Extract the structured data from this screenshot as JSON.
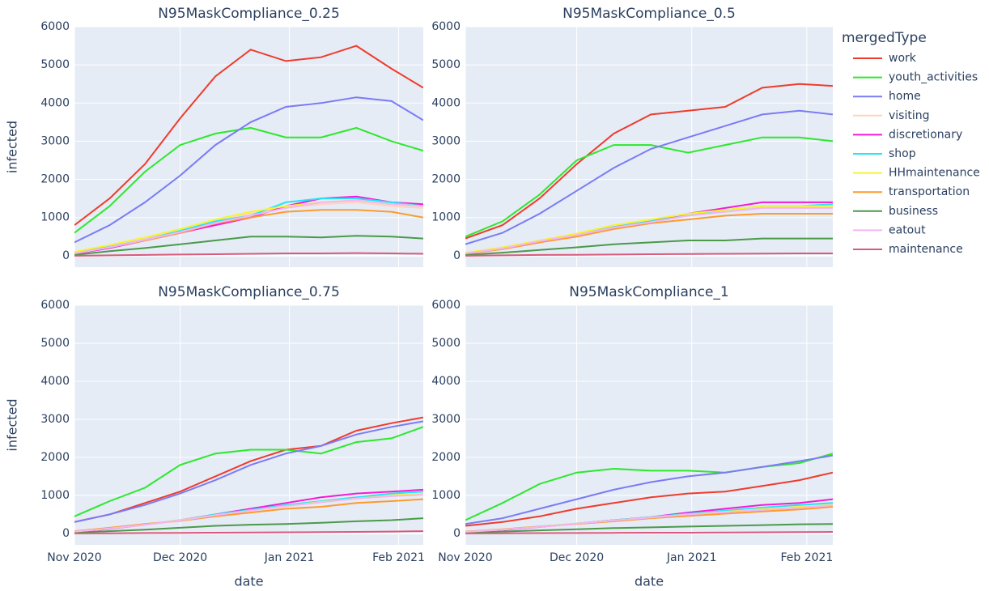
{
  "legend_title": "mergedType",
  "legend": "right",
  "chart_data": [
    {
      "type": "line",
      "title": "N95MaskCompliance_0.25",
      "y_label": "infected",
      "x": [
        0,
        10,
        20,
        30,
        40,
        50,
        60,
        70,
        80,
        90,
        99
      ],
      "xlim": [
        0,
        99
      ],
      "xticks": [
        0,
        30,
        61,
        92
      ],
      "ylim": [
        -300,
        6000
      ],
      "yticks": [
        0,
        1000,
        2000,
        3000,
        4000,
        5000,
        6000
      ],
      "grid": true,
      "series": [
        {
          "name": "work",
          "color": "#EF3B2C",
          "values": [
            800,
            1500,
            2400,
            3600,
            4700,
            5400,
            5100,
            5200,
            5500,
            4900,
            4400
          ]
        },
        {
          "name": "youth_activities",
          "color": "#2CE82C",
          "values": [
            600,
            1300,
            2200,
            2900,
            3200,
            3350,
            3100,
            3100,
            3350,
            3000,
            2750
          ]
        },
        {
          "name": "home",
          "color": "#7B7BF5",
          "values": [
            350,
            800,
            1400,
            2100,
            2900,
            3500,
            3900,
            4000,
            4150,
            4050,
            3550
          ]
        },
        {
          "name": "visiting",
          "color": "#FFD3BE",
          "values": [
            100,
            250,
            450,
            650,
            900,
            1100,
            1250,
            1350,
            1400,
            1300,
            1250
          ]
        },
        {
          "name": "discretionary",
          "color": "#F51AD6",
          "values": [
            50,
            200,
            400,
            600,
            800,
            1000,
            1300,
            1500,
            1550,
            1400,
            1350
          ]
        },
        {
          "name": "shop",
          "color": "#22E5F5",
          "values": [
            80,
            230,
            420,
            650,
            900,
            1050,
            1400,
            1500,
            1500,
            1400,
            1300
          ]
        },
        {
          "name": "HHmaintenance",
          "color": "#F5F52C",
          "values": [
            100,
            280,
            480,
            700,
            950,
            1150,
            1300,
            1400,
            1450,
            1350,
            1300
          ]
        },
        {
          "name": "transportation",
          "color": "#FF9A2C",
          "values": [
            60,
            220,
            400,
            600,
            850,
            1000,
            1150,
            1200,
            1200,
            1150,
            1000
          ]
        },
        {
          "name": "business",
          "color": "#4A9A4A",
          "values": [
            20,
            120,
            200,
            300,
            400,
            500,
            500,
            480,
            520,
            500,
            450
          ]
        },
        {
          "name": "eatout",
          "color": "#F5B5F5",
          "values": [
            60,
            220,
            420,
            620,
            860,
            1050,
            1250,
            1400,
            1450,
            1350,
            1300
          ]
        },
        {
          "name": "maintenance",
          "color": "#D95A7A",
          "values": [
            0,
            10,
            20,
            30,
            40,
            50,
            60,
            60,
            70,
            60,
            50
          ]
        }
      ]
    },
    {
      "type": "line",
      "title": "N95MaskCompliance_0.5",
      "x": [
        0,
        10,
        20,
        30,
        40,
        50,
        60,
        70,
        80,
        90,
        99
      ],
      "xlim": [
        0,
        99
      ],
      "xticks": [
        0,
        30,
        61,
        92
      ],
      "ylim": [
        -300,
        6000
      ],
      "yticks": [
        0,
        1000,
        2000,
        3000,
        4000,
        5000,
        6000
      ],
      "grid": true,
      "series": [
        {
          "name": "work",
          "color": "#EF3B2C",
          "values": [
            450,
            800,
            1500,
            2400,
            3200,
            3700,
            3800,
            3900,
            4400,
            4500,
            4450
          ]
        },
        {
          "name": "youth_activities",
          "color": "#2CE82C",
          "values": [
            500,
            900,
            1600,
            2500,
            2900,
            2900,
            2700,
            2900,
            3100,
            3100,
            3000
          ]
        },
        {
          "name": "home",
          "color": "#7B7BF5",
          "values": [
            300,
            600,
            1100,
            1700,
            2300,
            2800,
            3100,
            3400,
            3700,
            3800,
            3700
          ]
        },
        {
          "name": "visiting",
          "color": "#FFD3BE",
          "values": [
            80,
            200,
            400,
            550,
            750,
            900,
            1050,
            1150,
            1250,
            1250,
            1250
          ]
        },
        {
          "name": "discretionary",
          "color": "#F51AD6",
          "values": [
            50,
            180,
            350,
            550,
            750,
            900,
            1100,
            1250,
            1400,
            1400,
            1400
          ]
        },
        {
          "name": "shop",
          "color": "#22E5F5",
          "values": [
            60,
            200,
            380,
            550,
            750,
            900,
            1050,
            1200,
            1300,
            1300,
            1350
          ]
        },
        {
          "name": "HHmaintenance",
          "color": "#F5F52C",
          "values": [
            80,
            220,
            400,
            580,
            800,
            950,
            1100,
            1200,
            1300,
            1300,
            1300
          ]
        },
        {
          "name": "transportation",
          "color": "#FF9A2C",
          "values": [
            50,
            170,
            350,
            500,
            700,
            850,
            950,
            1050,
            1100,
            1100,
            1100
          ]
        },
        {
          "name": "business",
          "color": "#4A9A4A",
          "values": [
            20,
            80,
            150,
            220,
            300,
            350,
            400,
            400,
            450,
            450,
            450
          ]
        },
        {
          "name": "eatout",
          "color": "#F5B5F5",
          "values": [
            60,
            190,
            380,
            540,
            740,
            880,
            1050,
            1150,
            1250,
            1250,
            1250
          ]
        },
        {
          "name": "maintenance",
          "color": "#D95A7A",
          "values": [
            0,
            10,
            20,
            25,
            30,
            40,
            45,
            50,
            55,
            60,
            60
          ]
        }
      ]
    },
    {
      "type": "line",
      "title": "N95MaskCompliance_0.75",
      "y_label": "infected",
      "x_label": "date",
      "x": [
        0,
        10,
        20,
        30,
        40,
        50,
        60,
        70,
        80,
        90,
        99
      ],
      "xlim": [
        0,
        99
      ],
      "xticks": [
        {
          "value": 0,
          "label": "Nov 2020"
        },
        {
          "value": 30,
          "label": "Dec 2020"
        },
        {
          "value": 61,
          "label": "Jan 2021"
        },
        {
          "value": 92,
          "label": "Feb 2021"
        }
      ],
      "ylim": [
        -300,
        6000
      ],
      "yticks": [
        0,
        1000,
        2000,
        3000,
        4000,
        5000,
        6000
      ],
      "grid": true,
      "series": [
        {
          "name": "work",
          "color": "#EF3B2C",
          "values": [
            300,
            500,
            800,
            1100,
            1500,
            1900,
            2200,
            2300,
            2700,
            2900,
            3050
          ]
        },
        {
          "name": "youth_activities",
          "color": "#2CE82C",
          "values": [
            450,
            850,
            1200,
            1800,
            2100,
            2200,
            2200,
            2100,
            2400,
            2500,
            2800
          ]
        },
        {
          "name": "home",
          "color": "#7B7BF5",
          "values": [
            300,
            500,
            750,
            1050,
            1400,
            1800,
            2100,
            2300,
            2600,
            2800,
            2950
          ]
        },
        {
          "name": "visiting",
          "color": "#FFD3BE",
          "values": [
            50,
            130,
            230,
            350,
            500,
            620,
            750,
            850,
            950,
            1000,
            1050
          ]
        },
        {
          "name": "discretionary",
          "color": "#F51AD6",
          "values": [
            40,
            120,
            230,
            350,
            500,
            650,
            800,
            950,
            1050,
            1100,
            1150
          ]
        },
        {
          "name": "shop",
          "color": "#22E5F5",
          "values": [
            50,
            130,
            230,
            350,
            500,
            620,
            750,
            850,
            950,
            1050,
            1100
          ]
        },
        {
          "name": "HHmaintenance",
          "color": "#F5F52C",
          "values": [
            50,
            130,
            230,
            350,
            480,
            600,
            720,
            830,
            920,
            1000,
            1050
          ]
        },
        {
          "name": "transportation",
          "color": "#FF9A2C",
          "values": [
            60,
            150,
            250,
            330,
            450,
            550,
            650,
            700,
            800,
            850,
            900
          ]
        },
        {
          "name": "business",
          "color": "#4A9A4A",
          "values": [
            20,
            60,
            100,
            150,
            200,
            230,
            250,
            280,
            320,
            350,
            400
          ]
        },
        {
          "name": "eatout",
          "color": "#F5B5F5",
          "values": [
            50,
            130,
            230,
            340,
            480,
            600,
            720,
            820,
            920,
            980,
            1020
          ]
        },
        {
          "name": "maintenance",
          "color": "#D95A7A",
          "values": [
            0,
            5,
            10,
            15,
            20,
            25,
            30,
            35,
            40,
            50,
            60
          ]
        }
      ]
    },
    {
      "type": "line",
      "title": "N95MaskCompliance_1",
      "x_label": "date",
      "x": [
        0,
        10,
        20,
        30,
        40,
        50,
        60,
        70,
        80,
        90,
        99
      ],
      "xlim": [
        0,
        99
      ],
      "xticks": [
        {
          "value": 0,
          "label": "Nov 2020"
        },
        {
          "value": 30,
          "label": "Dec 2020"
        },
        {
          "value": 61,
          "label": "Jan 2021"
        },
        {
          "value": 92,
          "label": "Feb 2021"
        }
      ],
      "ylim": [
        -300,
        6000
      ],
      "yticks": [
        0,
        1000,
        2000,
        3000,
        4000,
        5000,
        6000
      ],
      "grid": true,
      "series": [
        {
          "name": "work",
          "color": "#EF3B2C",
          "values": [
            200,
            300,
            450,
            650,
            800,
            950,
            1050,
            1100,
            1250,
            1400,
            1600
          ]
        },
        {
          "name": "youth_activities",
          "color": "#2CE82C",
          "values": [
            350,
            800,
            1300,
            1600,
            1700,
            1650,
            1650,
            1600,
            1750,
            1850,
            2100
          ]
        },
        {
          "name": "home",
          "color": "#7B7BF5",
          "values": [
            250,
            400,
            650,
            900,
            1150,
            1350,
            1500,
            1600,
            1750,
            1900,
            2050
          ]
        },
        {
          "name": "visiting",
          "color": "#FFD3BE",
          "values": [
            40,
            100,
            180,
            260,
            350,
            430,
            500,
            560,
            620,
            680,
            750
          ]
        },
        {
          "name": "discretionary",
          "color": "#F51AD6",
          "values": [
            30,
            90,
            170,
            260,
            350,
            430,
            550,
            650,
            750,
            800,
            900
          ]
        },
        {
          "name": "shop",
          "color": "#22E5F5",
          "values": [
            40,
            100,
            180,
            260,
            350,
            430,
            520,
            600,
            680,
            750,
            800
          ]
        },
        {
          "name": "HHmaintenance",
          "color": "#F5F52C",
          "values": [
            40,
            100,
            180,
            260,
            340,
            420,
            500,
            570,
            640,
            700,
            750
          ]
        },
        {
          "name": "transportation",
          "color": "#FF9A2C",
          "values": [
            50,
            110,
            180,
            250,
            320,
            400,
            460,
            520,
            580,
            630,
            700
          ]
        },
        {
          "name": "business",
          "color": "#4A9A4A",
          "values": [
            20,
            50,
            80,
            110,
            140,
            160,
            180,
            200,
            220,
            240,
            250
          ]
        },
        {
          "name": "eatout",
          "color": "#F5B5F5",
          "values": [
            40,
            100,
            175,
            255,
            340,
            420,
            500,
            560,
            620,
            680,
            740
          ]
        },
        {
          "name": "maintenance",
          "color": "#D95A7A",
          "values": [
            0,
            5,
            8,
            10,
            15,
            20,
            20,
            25,
            30,
            35,
            40
          ]
        }
      ]
    }
  ]
}
